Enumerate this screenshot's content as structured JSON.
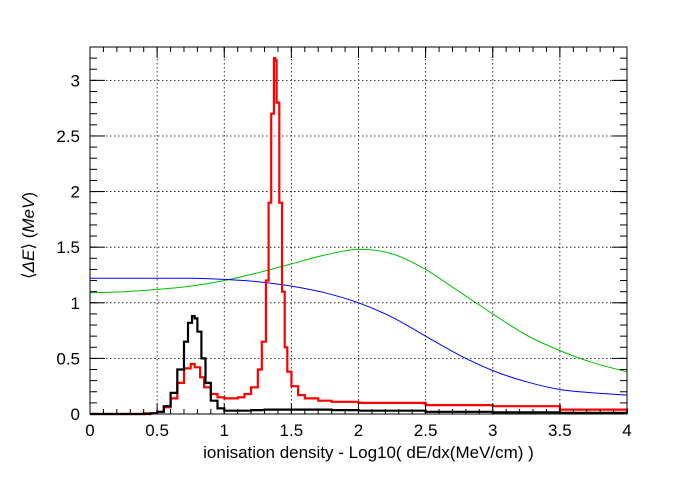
{
  "chart_data": {
    "type": "line",
    "title": "",
    "xlabel": "ionisation density - Log10( dE/dx(MeV/cm) )",
    "ylabel_parts": [
      "⟨",
      "ΔE",
      "⟩ (",
      "MeV",
      ")"
    ],
    "xlim": [
      0,
      4
    ],
    "ylim": [
      0,
      3.3
    ],
    "xticks": [
      0,
      0.5,
      1,
      1.5,
      2,
      2.5,
      3,
      3.5,
      4
    ],
    "xtick_labels": [
      "0",
      "0.5",
      "1",
      "1.5",
      "2",
      "2.5",
      "3",
      "3.5",
      "4"
    ],
    "yticks": [
      0,
      0.5,
      1,
      1.5,
      2,
      2.5,
      3
    ],
    "ytick_labels": [
      "0",
      "0.5",
      "1",
      "1.5",
      "2",
      "2.5",
      "3"
    ],
    "grid": true,
    "series": [
      {
        "color": "#00c000",
        "style": "smooth",
        "x": [
          0,
          0.25,
          0.5,
          0.75,
          1.0,
          1.25,
          1.5,
          1.75,
          2.0,
          2.25,
          2.5,
          2.75,
          3.0,
          3.25,
          3.5,
          3.75,
          4.0
        ],
        "y": [
          1.09,
          1.1,
          1.12,
          1.15,
          1.2,
          1.27,
          1.35,
          1.43,
          1.48,
          1.44,
          1.3,
          1.1,
          0.9,
          0.71,
          0.57,
          0.46,
          0.38
        ]
      },
      {
        "color": "#0000ff",
        "style": "smooth",
        "x": [
          0,
          0.25,
          0.5,
          0.75,
          1.0,
          1.25,
          1.5,
          1.75,
          2.0,
          2.25,
          2.5,
          2.75,
          3.0,
          3.25,
          3.5,
          3.75,
          4.0
        ],
        "y": [
          1.22,
          1.22,
          1.22,
          1.22,
          1.21,
          1.19,
          1.15,
          1.09,
          1.0,
          0.87,
          0.7,
          0.53,
          0.39,
          0.29,
          0.22,
          0.19,
          0.17
        ]
      },
      {
        "color": "#ff0000",
        "style": "step",
        "x": [
          0,
          0.2,
          0.4,
          0.5,
          0.55,
          0.6,
          0.65,
          0.7,
          0.75,
          0.78,
          0.82,
          0.85,
          0.9,
          0.95,
          1.0,
          1.05,
          1.1,
          1.15,
          1.2,
          1.25,
          1.28,
          1.31,
          1.33,
          1.35,
          1.37,
          1.38,
          1.39,
          1.41,
          1.43,
          1.45,
          1.47,
          1.5,
          1.55,
          1.6,
          1.7,
          1.8,
          2.0,
          2.5,
          3.0,
          3.5,
          4.0
        ],
        "y": [
          0,
          0,
          0.005,
          0.02,
          0.06,
          0.14,
          0.28,
          0.41,
          0.45,
          0.42,
          0.33,
          0.24,
          0.18,
          0.15,
          0.14,
          0.14,
          0.15,
          0.18,
          0.24,
          0.4,
          0.65,
          1.2,
          1.9,
          2.7,
          3.2,
          3.18,
          2.8,
          1.9,
          1.1,
          0.6,
          0.38,
          0.25,
          0.17,
          0.14,
          0.12,
          0.11,
          0.1,
          0.08,
          0.07,
          0.04,
          0.02
        ]
      },
      {
        "color": "#000000",
        "style": "step",
        "x": [
          0,
          0.3,
          0.45,
          0.5,
          0.55,
          0.6,
          0.65,
          0.7,
          0.73,
          0.76,
          0.78,
          0.8,
          0.83,
          0.86,
          0.9,
          0.95,
          1.0,
          1.1,
          1.2,
          1.3,
          1.4,
          1.6,
          1.8,
          2.0,
          2.5,
          3.0,
          3.5,
          4.0
        ],
        "y": [
          0,
          0,
          0.005,
          0.02,
          0.07,
          0.19,
          0.4,
          0.65,
          0.82,
          0.88,
          0.86,
          0.74,
          0.5,
          0.28,
          0.12,
          0.05,
          0.03,
          0.03,
          0.035,
          0.04,
          0.04,
          0.04,
          0.035,
          0.03,
          0.02,
          0.015,
          0.01,
          0.005
        ]
      }
    ]
  }
}
